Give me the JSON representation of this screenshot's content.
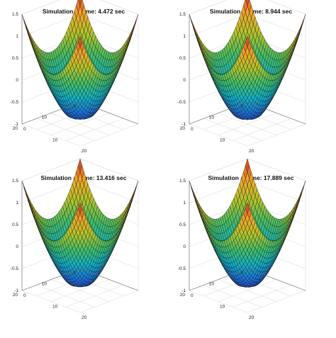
{
  "chart_data": [
    {
      "type": "surface",
      "title": "Simulation at time: 4.472 sec",
      "xlim": [
        0,
        20
      ],
      "ylim": [
        0,
        20
      ],
      "zlim": [
        -1,
        1.5
      ],
      "xticks": [
        "0",
        "10",
        "20"
      ],
      "yticks": [
        "0",
        "10",
        "20"
      ],
      "zticks": [
        "-1",
        "-0.5",
        "0",
        "0.5",
        "1",
        "1.5"
      ],
      "colormap": [
        "#2c2a8c",
        "#1d6fd8",
        "#13b3c8",
        "#43c16a",
        "#b5c72a",
        "#f4a72a",
        "#d2261e"
      ],
      "surface": {
        "bowl_min": -1,
        "corner_max": 1.5,
        "center_spike": 0.5
      }
    },
    {
      "type": "surface",
      "title": "Simulation at time: 8.944 sec",
      "xlim": [
        0,
        20
      ],
      "ylim": [
        0,
        20
      ],
      "zlim": [
        -1,
        1.5
      ],
      "xticks": [
        "0",
        "10",
        "20"
      ],
      "yticks": [
        "0",
        "10",
        "20"
      ],
      "zticks": [
        "-1",
        "-0.5",
        "0",
        "0.5",
        "1",
        "1.5"
      ],
      "colormap": [
        "#2c2a8c",
        "#1d6fd8",
        "#13b3c8",
        "#43c16a",
        "#b5c72a",
        "#f4a72a",
        "#d2261e"
      ],
      "surface": {
        "bowl_min": -1,
        "corner_max": 1.5,
        "center_spike": 0.4
      }
    },
    {
      "type": "surface",
      "title": "Simulation at time: 13.416 sec",
      "xlim": [
        0,
        20
      ],
      "ylim": [
        0,
        20
      ],
      "zlim": [
        -1,
        1.5
      ],
      "xticks": [
        "0",
        "10",
        "20"
      ],
      "yticks": [
        "0",
        "10",
        "20"
      ],
      "zticks": [
        "-1",
        "-0.5",
        "0",
        "0.5",
        "1",
        "1.5"
      ],
      "colormap": [
        "#2c2a8c",
        "#1d6fd8",
        "#13b3c8",
        "#43c16a",
        "#b5c72a",
        "#f4a72a",
        "#d2261e"
      ],
      "surface": {
        "bowl_min": -1,
        "corner_max": 1.5,
        "center_spike": 0.25
      }
    },
    {
      "type": "surface",
      "title": "Simulation at time: 17.889 sec",
      "xlim": [
        0,
        20
      ],
      "ylim": [
        0,
        20
      ],
      "zlim": [
        -1,
        1.5
      ],
      "xticks": [
        "0",
        "10",
        "20"
      ],
      "yticks": [
        "0",
        "10",
        "20"
      ],
      "zticks": [
        "-1",
        "-0.5",
        "0",
        "0.5",
        "1",
        "1.5"
      ],
      "colormap": [
        "#2c2a8c",
        "#1d6fd8",
        "#13b3c8",
        "#43c16a",
        "#b5c72a",
        "#f4a72a",
        "#d2261e"
      ],
      "surface": {
        "bowl_min": -1,
        "corner_max": 1.5,
        "center_spike": 0.2
      }
    }
  ]
}
